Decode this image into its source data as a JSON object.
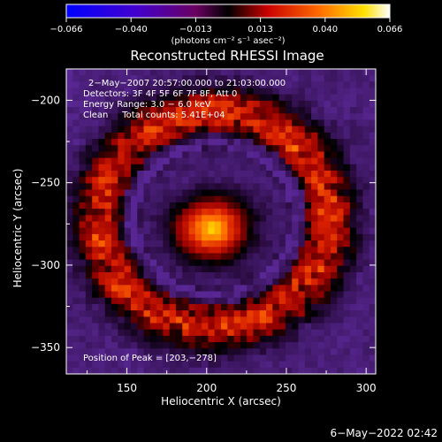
{
  "chart_data": {
    "type": "heatmap",
    "title": "Reconstructed RHESSI Image",
    "xlabel": "Heliocentric X (arcsec)",
    "ylabel": "Heliocentric Y (arcsec)",
    "xlim": [
      112,
      306
    ],
    "ylim": [
      -366,
      -181
    ],
    "x_ticks": [
      150,
      200,
      250,
      300
    ],
    "y_ticks": [
      -200,
      -250,
      -300,
      -350
    ],
    "colorbar": {
      "min": -0.066,
      "max": 0.066,
      "ticks": [
        "−0.066",
        "−0.040",
        "−0.013",
        "0.013",
        "0.040",
        "0.066"
      ],
      "units_label": "(photons cm⁻² s⁻¹ asec⁻²)"
    },
    "annotations": [
      "2−May−2007 20:57:00.000 to 21:03:00.000",
      "Detectors: 3F 4F 5F 6F 7F 8F, Att 0",
      "Energy Range: 3.0 − 6.0 keV",
      "Clean     Total counts: 5.41E+04"
    ],
    "peak_label": "Position of Peak = [203,−278]",
    "peak": [
      203,
      -278
    ],
    "ring_center": [
      205,
      -272
    ]
  },
  "footer": {
    "timestamp": "6−May−2022 02:42"
  }
}
